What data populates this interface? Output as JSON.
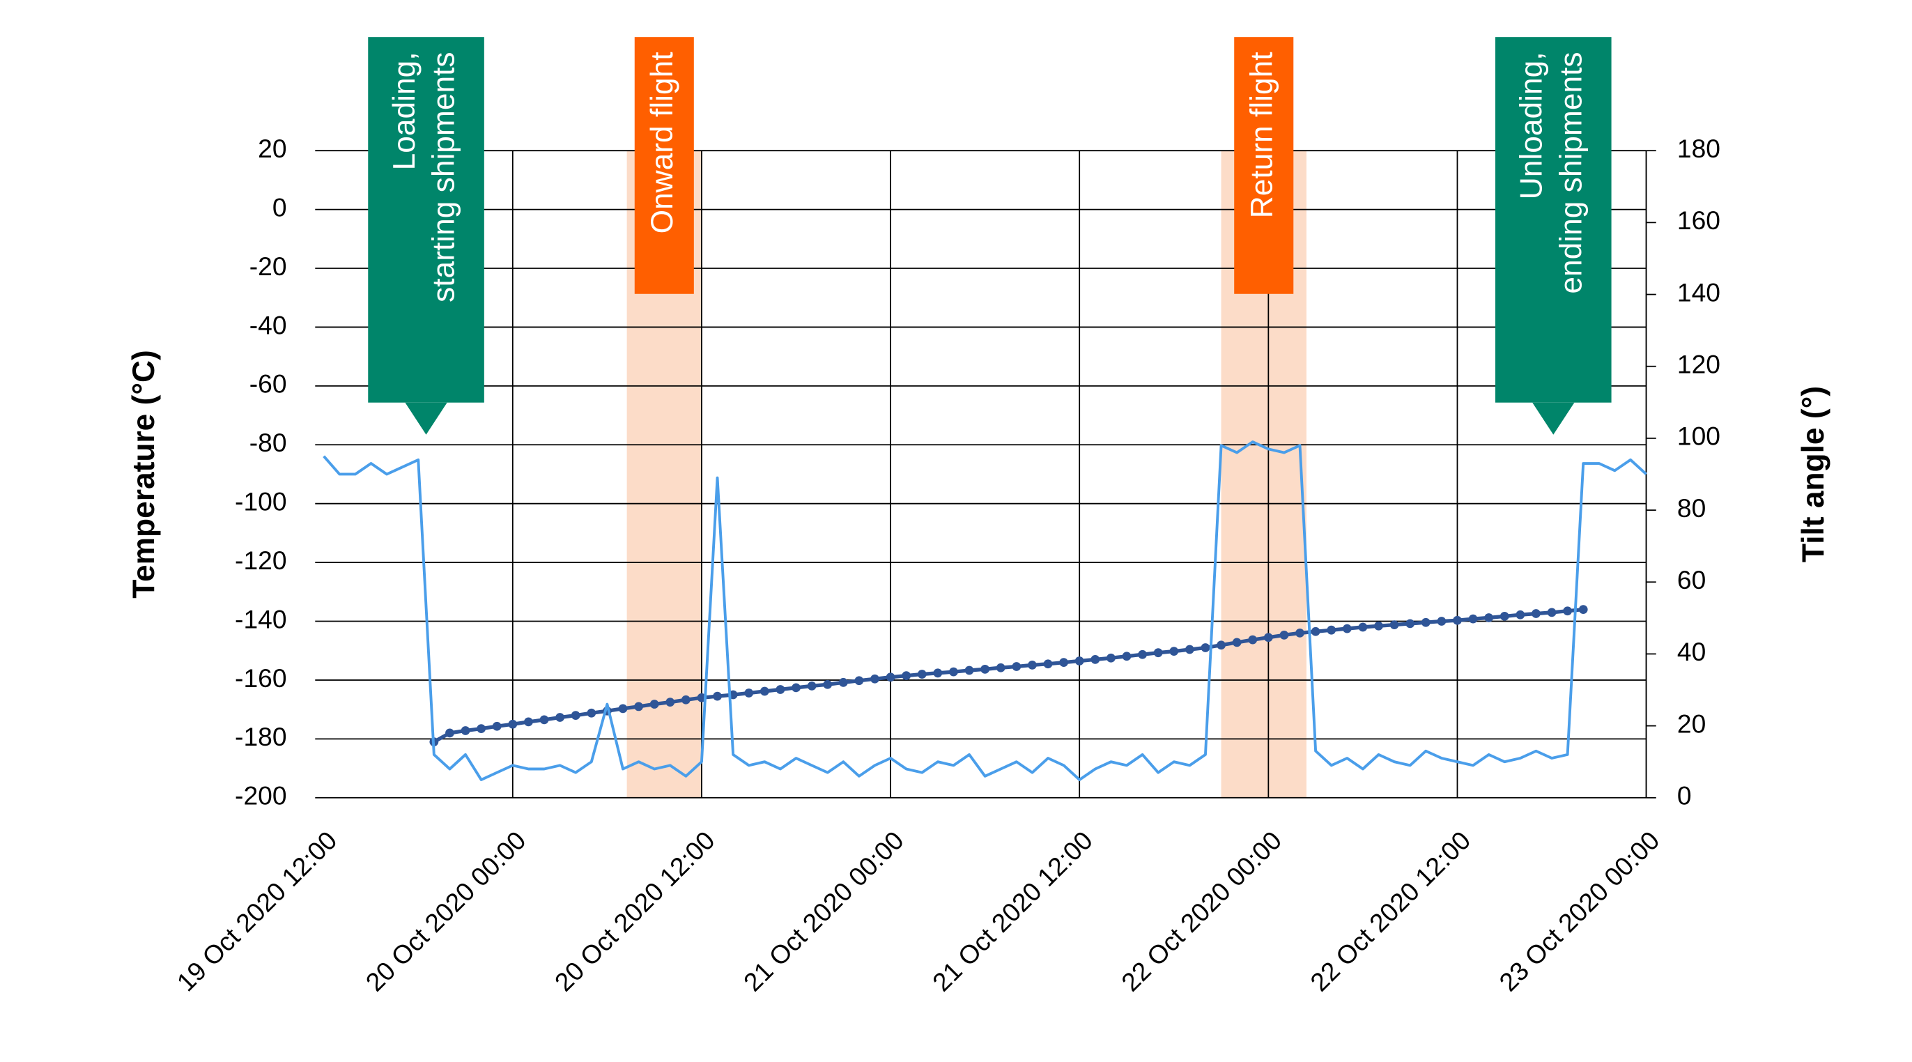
{
  "chart_data": {
    "type": "line",
    "y_title": "Temperature (°C)",
    "y2_title": "Tilt angle (°)",
    "xlim": [
      "19 Oct 2020 12:00",
      "23 Oct 2020 00:00"
    ],
    "xticks": [
      "19 Oct 2020 12:00",
      "20 Oct 2020 00:00",
      "20 Oct 2020 12:00",
      "21 Oct 2020 00:00",
      "21 Oct 2020 12:00",
      "22 Oct 2020 00:00",
      "22 Oct 2020 12:00",
      "23 Oct 2020 00:00"
    ],
    "ylim": [
      -200,
      20
    ],
    "yticks": [
      -200,
      -180,
      -160,
      -140,
      -120,
      -100,
      -80,
      -60,
      -40,
      -20,
      0,
      20
    ],
    "y2lim": [
      0,
      180
    ],
    "y2ticks": [
      0,
      20,
      40,
      60,
      80,
      100,
      120,
      140,
      160,
      180
    ],
    "grid": true,
    "x": [
      "19 Oct 2020 12:00",
      "19 Oct 2020 13:00",
      "19 Oct 2020 14:00",
      "19 Oct 2020 15:00",
      "19 Oct 2020 16:00",
      "19 Oct 2020 17:00",
      "19 Oct 2020 18:00",
      "19 Oct 2020 19:00",
      "19 Oct 2020 20:00",
      "19 Oct 2020 21:00",
      "19 Oct 2020 22:00",
      "19 Oct 2020 23:00",
      "20 Oct 2020 00:00",
      "20 Oct 2020 01:00",
      "20 Oct 2020 02:00",
      "20 Oct 2020 03:00",
      "20 Oct 2020 04:00",
      "20 Oct 2020 05:00",
      "20 Oct 2020 06:00",
      "20 Oct 2020 07:00",
      "20 Oct 2020 08:00",
      "20 Oct 2020 09:00",
      "20 Oct 2020 10:00",
      "20 Oct 2020 11:00",
      "20 Oct 2020 12:00",
      "20 Oct 2020 13:00",
      "20 Oct 2020 14:00",
      "20 Oct 2020 15:00",
      "20 Oct 2020 16:00",
      "20 Oct 2020 17:00",
      "20 Oct 2020 18:00",
      "20 Oct 2020 19:00",
      "20 Oct 2020 20:00",
      "20 Oct 2020 21:00",
      "20 Oct 2020 22:00",
      "20 Oct 2020 23:00",
      "21 Oct 2020 00:00",
      "21 Oct 2020 01:00",
      "21 Oct 2020 02:00",
      "21 Oct 2020 03:00",
      "21 Oct 2020 04:00",
      "21 Oct 2020 05:00",
      "21 Oct 2020 06:00",
      "21 Oct 2020 07:00",
      "21 Oct 2020 08:00",
      "21 Oct 2020 09:00",
      "21 Oct 2020 10:00",
      "21 Oct 2020 11:00",
      "21 Oct 2020 12:00",
      "21 Oct 2020 13:00",
      "21 Oct 2020 14:00",
      "21 Oct 2020 15:00",
      "21 Oct 2020 16:00",
      "21 Oct 2020 17:00",
      "21 Oct 2020 18:00",
      "21 Oct 2020 19:00",
      "21 Oct 2020 20:00",
      "21 Oct 2020 21:00",
      "21 Oct 2020 22:00",
      "21 Oct 2020 23:00",
      "22 Oct 2020 00:00",
      "22 Oct 2020 01:00",
      "22 Oct 2020 02:00",
      "22 Oct 2020 03:00",
      "22 Oct 2020 04:00",
      "22 Oct 2020 05:00",
      "22 Oct 2020 06:00",
      "22 Oct 2020 07:00",
      "22 Oct 2020 08:00",
      "22 Oct 2020 09:00",
      "22 Oct 2020 10:00",
      "22 Oct 2020 11:00",
      "22 Oct 2020 12:00",
      "22 Oct 2020 13:00",
      "22 Oct 2020 14:00",
      "22 Oct 2020 15:00",
      "22 Oct 2020 16:00",
      "22 Oct 2020 17:00",
      "22 Oct 2020 18:00",
      "22 Oct 2020 19:00",
      "22 Oct 2020 20:00",
      "22 Oct 2020 21:00",
      "22 Oct 2020 22:00",
      "22 Oct 2020 23:00",
      "23 Oct 2020 00:00"
    ],
    "series": [
      {
        "name": "Temperature",
        "color": "#2f5597",
        "markers": true,
        "values": [
          null,
          null,
          null,
          null,
          null,
          null,
          null,
          -181,
          -178,
          -177.2,
          -176.5,
          -175.7,
          -175,
          -174.2,
          -173.5,
          -172.7,
          -172,
          -171.2,
          -170.5,
          -169.7,
          -169,
          -168.2,
          -167.5,
          -166.7,
          -166,
          -165.5,
          -165,
          -164.4,
          -163.8,
          -163.2,
          -162.6,
          -162,
          -161.5,
          -160.8,
          -160.2,
          -159.6,
          -159,
          -158.5,
          -158,
          -157.6,
          -157.2,
          -156.7,
          -156.3,
          -155.8,
          -155.4,
          -154.9,
          -154.5,
          -154,
          -153.5,
          -153,
          -152.5,
          -151.9,
          -151.3,
          -150.7,
          -150.2,
          -149.6,
          -149,
          -148.1,
          -147.2,
          -146.3,
          -145.5,
          -144.7,
          -144,
          -143.5,
          -143,
          -142.5,
          -142,
          -141.6,
          -141.2,
          -140.8,
          -140.4,
          -140,
          -139.7,
          -139.2,
          -138.8,
          -138.3,
          -137.8,
          -137.4,
          -137,
          -136.5,
          -136,
          null,
          null,
          null,
          null
        ]
      },
      {
        "name": "Tilt angle",
        "color": "#4a9eea",
        "axis": "y2",
        "markers": false,
        "values": [
          95,
          90,
          90,
          93,
          90,
          92,
          94,
          12,
          8,
          12,
          5,
          7,
          9,
          8,
          8,
          9,
          7,
          10,
          26,
          8,
          10,
          8,
          9,
          6,
          10,
          89,
          12,
          9,
          10,
          8,
          11,
          9,
          7,
          10,
          6,
          9,
          11,
          8,
          7,
          10,
          9,
          12,
          6,
          8,
          10,
          7,
          11,
          9,
          5,
          8,
          10,
          9,
          12,
          7,
          10,
          9,
          12,
          98,
          96,
          99,
          97,
          96,
          98,
          13,
          9,
          11,
          8,
          12,
          10,
          9,
          13,
          11,
          10,
          9,
          12,
          10,
          11,
          13,
          11,
          12,
          93,
          93,
          91,
          94,
          90
        ]
      }
    ],
    "annotations": [
      {
        "type": "callout",
        "lines": [
          "Loading,",
          "starting shipments"
        ],
        "x": "19 Oct 2020 18:30",
        "color": "#00856a"
      },
      {
        "type": "band",
        "lines": [
          "Onward flight"
        ],
        "start": "20 Oct 2020 07:15",
        "end": "20 Oct 2020 12:00",
        "color": "#ff5f00",
        "band_color": "#fcdcc8"
      },
      {
        "type": "band",
        "lines": [
          "Return flight"
        ],
        "start": "21 Oct 2020 21:00",
        "end": "22 Oct 2020 02:25",
        "color": "#ff5f00",
        "band_color": "#fcdcc8"
      },
      {
        "type": "callout",
        "lines": [
          "Unloading,",
          "ending shipments"
        ],
        "x": "22 Oct 2020 18:06",
        "color": "#00856a"
      }
    ]
  }
}
